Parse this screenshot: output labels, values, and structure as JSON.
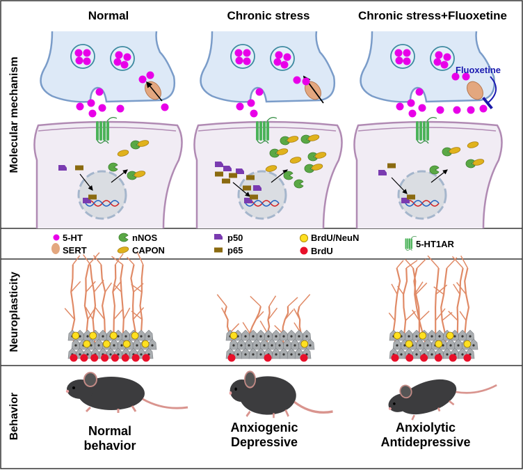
{
  "columns": {
    "normal": "Normal",
    "stress": "Chronic stress",
    "fluox": "Chronic stress+Fluoxetine"
  },
  "rows": {
    "molecular": "Molecular mechanism",
    "neuro": "Neuroplasticity",
    "behavior": "Behavior"
  },
  "drug_label": "Fluoxetine",
  "legend": [
    {
      "label": "5-HT",
      "icon": "serotonin-dot-icon",
      "color": "#e800e8"
    },
    {
      "label": "SERT",
      "icon": "sert-transporter-icon",
      "color": "#e3a77f"
    },
    {
      "label": "nNOS",
      "icon": "nnos-icon",
      "color": "#5aa845"
    },
    {
      "label": "CAPON",
      "icon": "capon-icon",
      "color": "#e0b21c"
    },
    {
      "label": "p50",
      "icon": "p50-icon",
      "color": "#7a3bb0"
    },
    {
      "label": "p65",
      "icon": "p65-icon",
      "color": "#8a6a10"
    },
    {
      "label": "BrdU/NeuN",
      "icon": "brdu-neun-cell-icon",
      "color": "#ffe020"
    },
    {
      "label": "BrdU",
      "icon": "brdu-cell-icon",
      "color": "#e8102a"
    },
    {
      "label": "5-HT1AR",
      "icon": "5ht1a-receptor-icon",
      "color": "#4cb35a"
    }
  ],
  "behavior": {
    "normal": [
      "Normal",
      "behavior"
    ],
    "stress": [
      "Anxiogenic",
      "Depressive"
    ],
    "fluox": [
      "Anxiolytic",
      "Antidepressive"
    ]
  }
}
